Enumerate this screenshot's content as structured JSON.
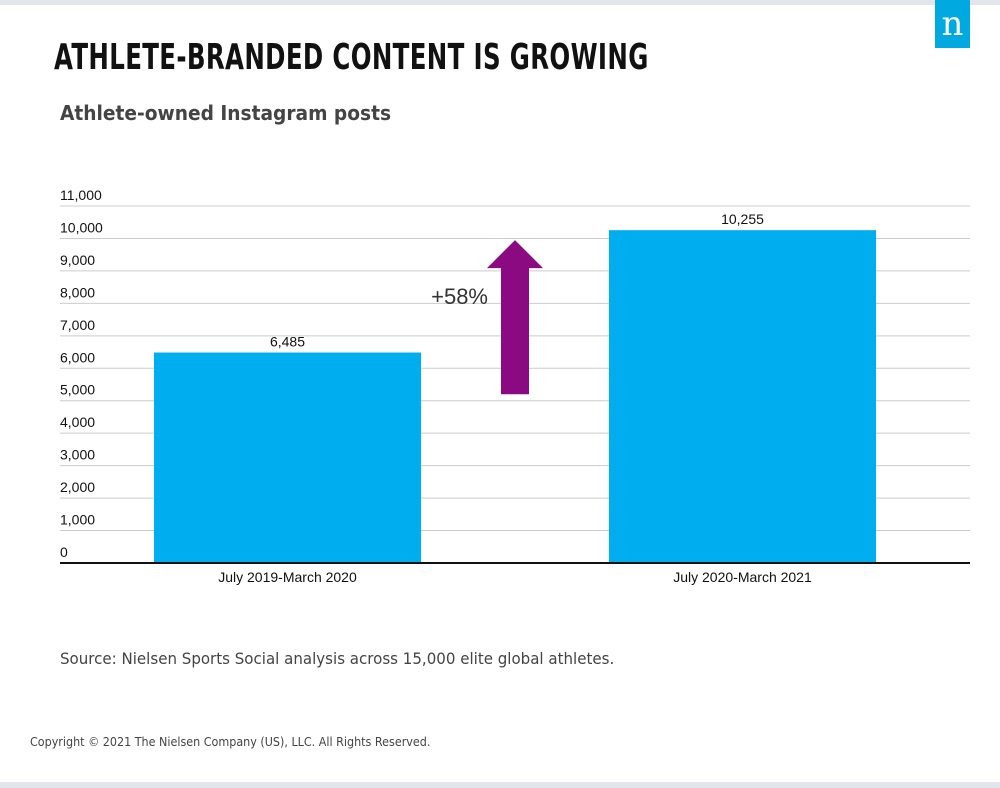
{
  "brand": {
    "logo_letter": "n",
    "logo_color": "#00a9e0"
  },
  "title": "ATHLETE-BRANDED CONTENT IS GROWING",
  "chart_data": {
    "type": "bar",
    "title": "Athlete-owned Instagram posts",
    "categories": [
      "July 2019-March 2020",
      "July 2020-March 2021"
    ],
    "values": [
      6485,
      10255
    ],
    "value_labels": [
      "6,485",
      "10,255"
    ],
    "ylim": [
      0,
      11000
    ],
    "y_ticks": [
      {
        "value": 0,
        "label": "0"
      },
      {
        "value": 1000,
        "label": "1,000"
      },
      {
        "value": 2000,
        "label": "2,000"
      },
      {
        "value": 3000,
        "label": "3,000"
      },
      {
        "value": 4000,
        "label": "4,000"
      },
      {
        "value": 5000,
        "label": "5,000"
      },
      {
        "value": 6000,
        "label": "6,000"
      },
      {
        "value": 7000,
        "label": "7,000"
      },
      {
        "value": 8000,
        "label": "8,000"
      },
      {
        "value": 9000,
        "label": "9,000"
      },
      {
        "value": 10000,
        "label": "10,000"
      },
      {
        "value": 11000,
        "label": "11,000"
      }
    ],
    "grid": true,
    "bar_color": "#00aeef",
    "annotation": {
      "text": "+58%",
      "arrow_color": "#8b0a82",
      "arrow_from": 5200,
      "arrow_to": 9950
    }
  },
  "source": "Source: Nielsen Sports Social analysis across 15,000 elite global athletes.",
  "copyright": "Copyright © 2021 The Nielsen Company (US), LLC. All Rights Reserved."
}
